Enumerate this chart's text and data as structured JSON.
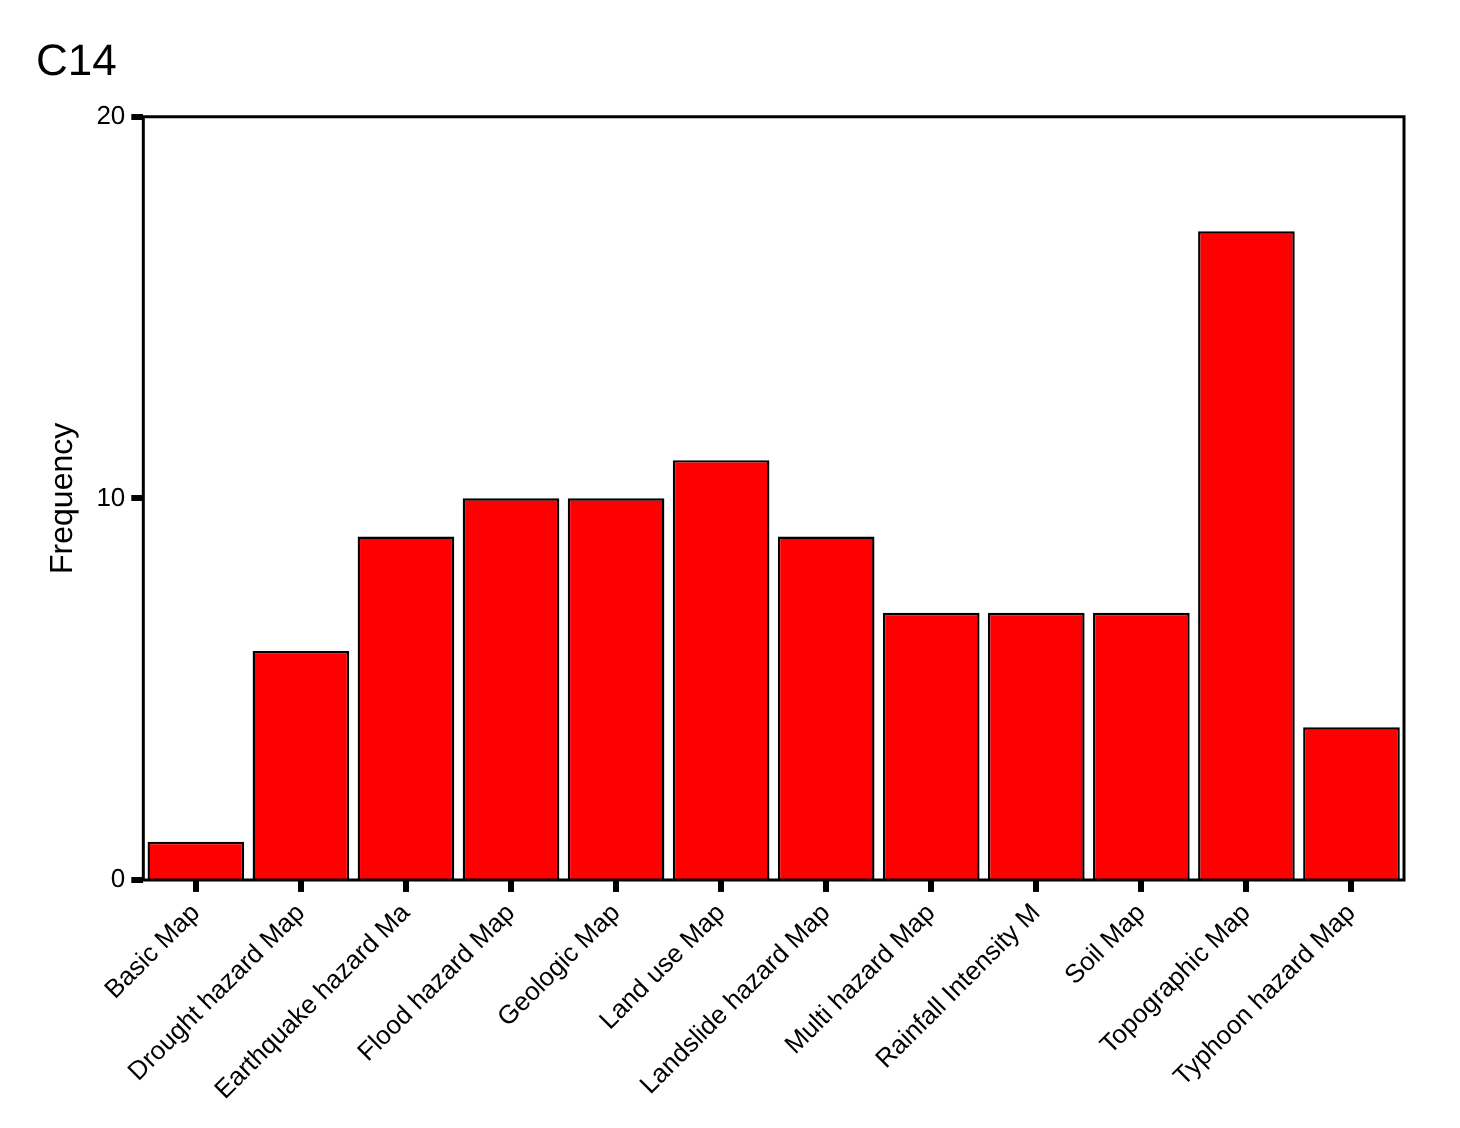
{
  "chart_data": {
    "type": "bar",
    "title": "C14",
    "ylabel": "Frequency",
    "categories": [
      "Basic Map",
      "Drought hazard Map",
      "Earthquake hazard Ma",
      "Flood hazard Map",
      "Geologic Map",
      "Land use Map",
      "Landslide hazard Map",
      "Multi hazard Map",
      "Rainfall Intensity M",
      "Soil Map",
      "Topographic Map",
      "Typhoon hazard Map"
    ],
    "values": [
      1,
      6,
      9,
      10,
      10,
      11,
      9,
      7,
      7,
      7,
      17,
      4
    ],
    "color": "#ff0000",
    "ylim": [
      0,
      20
    ],
    "yticks": [
      0,
      10,
      20
    ],
    "grid": false,
    "legend": false
  }
}
